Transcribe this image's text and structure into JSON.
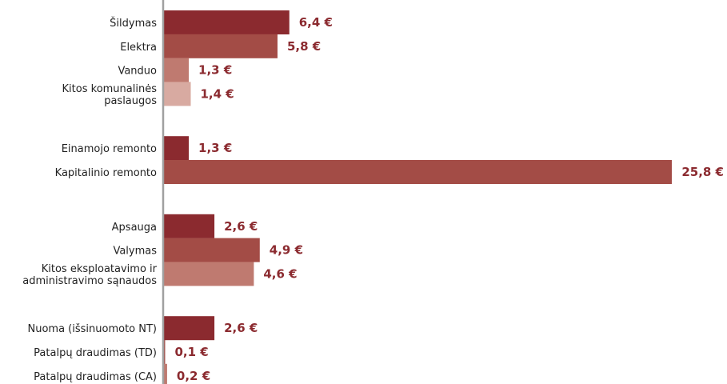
{
  "chart_data": {
    "type": "bar",
    "orientation": "horizontal",
    "grid": false,
    "legend": "none",
    "value_suffix": " €",
    "decimal_separator": ",",
    "label_color": "#8b2a2f",
    "axis_color": "#a0a0a0",
    "bars": [
      {
        "group": 0,
        "lines": [
          "Šildymas"
        ],
        "value": 6.4,
        "value_label": "6,4 €",
        "color": "#8b2a2f"
      },
      {
        "group": 0,
        "lines": [
          "Elektra"
        ],
        "value": 5.8,
        "value_label": "5,8 €",
        "color": "#a34c46"
      },
      {
        "group": 0,
        "lines": [
          "Vanduo"
        ],
        "value": 1.3,
        "value_label": "1,3 €",
        "color": "#bf7a70"
      },
      {
        "group": 0,
        "lines": [
          "Kitos komunalinės",
          "paslaugos"
        ],
        "value": 1.4,
        "value_label": "1,4 €",
        "color": "#d8aaa1"
      },
      {
        "group": 1,
        "lines": [
          "Einamojo remonto"
        ],
        "value": 1.3,
        "value_label": "1,3 €",
        "color": "#8b2a2f"
      },
      {
        "group": 1,
        "lines": [
          "Kapitalinio remonto"
        ],
        "value": 25.8,
        "value_label": "25,8 €",
        "color": "#a34c46"
      },
      {
        "group": 2,
        "lines": [
          "Apsauga"
        ],
        "value": 2.6,
        "value_label": "2,6 €",
        "color": "#8b2a2f"
      },
      {
        "group": 2,
        "lines": [
          "Valymas"
        ],
        "value": 4.9,
        "value_label": "4,9 €",
        "color": "#a34c46"
      },
      {
        "group": 2,
        "lines": [
          "Kitos eksploatavimo ir",
          "administravimo sąnaudos"
        ],
        "value": 4.6,
        "value_label": "4,6 €",
        "color": "#bf7a70"
      },
      {
        "group": 3,
        "lines": [
          "Nuoma (išsinuomoto NT)"
        ],
        "value": 2.6,
        "value_label": "2,6 €",
        "color": "#8b2a2f"
      },
      {
        "group": 3,
        "lines": [
          "Patalpų draudimas (TD)"
        ],
        "value": 0.1,
        "value_label": "0,1 €",
        "color": "#a34c46"
      },
      {
        "group": 3,
        "lines": [
          "Patalpų draudimas (CA)"
        ],
        "value": 0.2,
        "value_label": "0,2 €",
        "color": "#bf7a70"
      }
    ]
  }
}
